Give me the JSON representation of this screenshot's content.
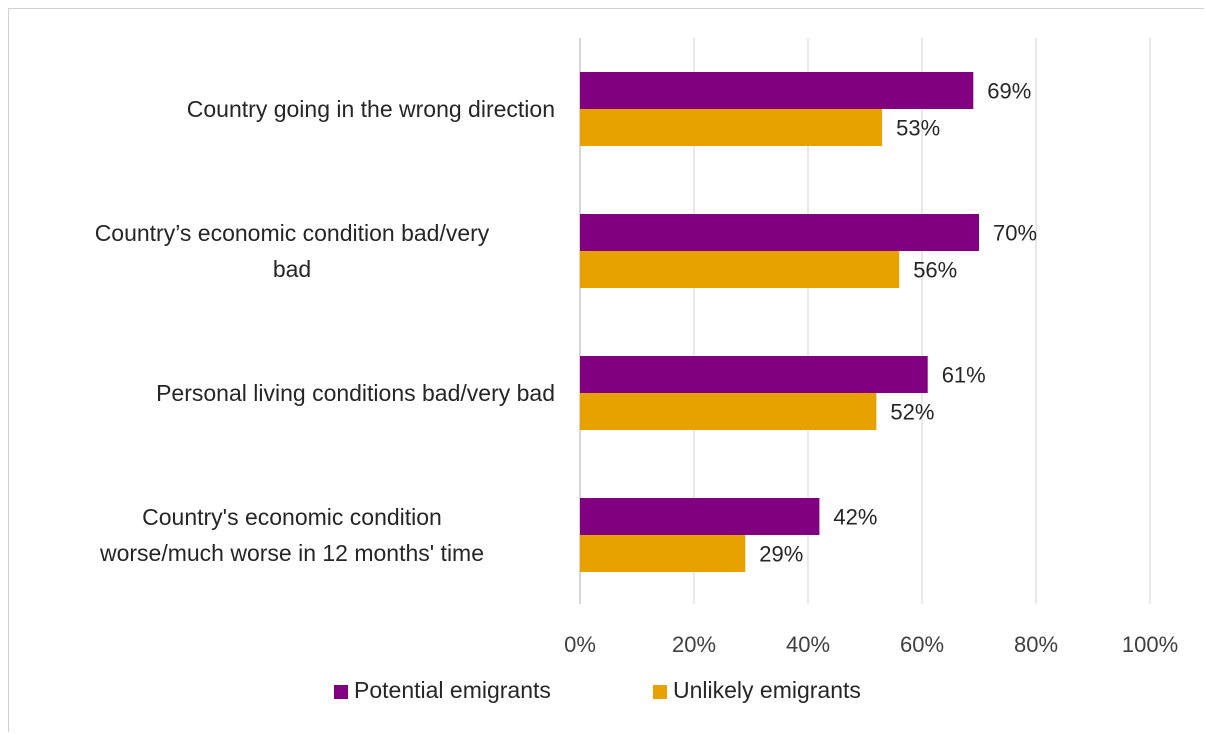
{
  "chart_data": {
    "type": "bar",
    "orientation": "horizontal",
    "categories": [
      [
        "Country going in the wrong direction"
      ],
      [
        "Country’s economic condition bad/very",
        "bad"
      ],
      [
        "Personal living conditions bad/very bad"
      ],
      [
        "Country's economic condition",
        "worse/much worse in 12 months' time"
      ]
    ],
    "series": [
      {
        "name": "Potential emigrants",
        "color": "#800080",
        "values": [
          69,
          70,
          61,
          42
        ],
        "labels": [
          "69%",
          "70%",
          "61%",
          "42%"
        ]
      },
      {
        "name": "Unlikely emigrants",
        "color": "#E8A200",
        "values": [
          53,
          56,
          52,
          29
        ],
        "labels": [
          "53%",
          "56%",
          "52%",
          "29%"
        ]
      }
    ],
    "xlim": [
      0,
      100
    ],
    "xticks": [
      0,
      20,
      40,
      60,
      80,
      100
    ],
    "xtick_labels": [
      "0%",
      "20%",
      "40%",
      "60%",
      "80%",
      "100%"
    ],
    "grid": true,
    "legend_position": "bottom"
  }
}
